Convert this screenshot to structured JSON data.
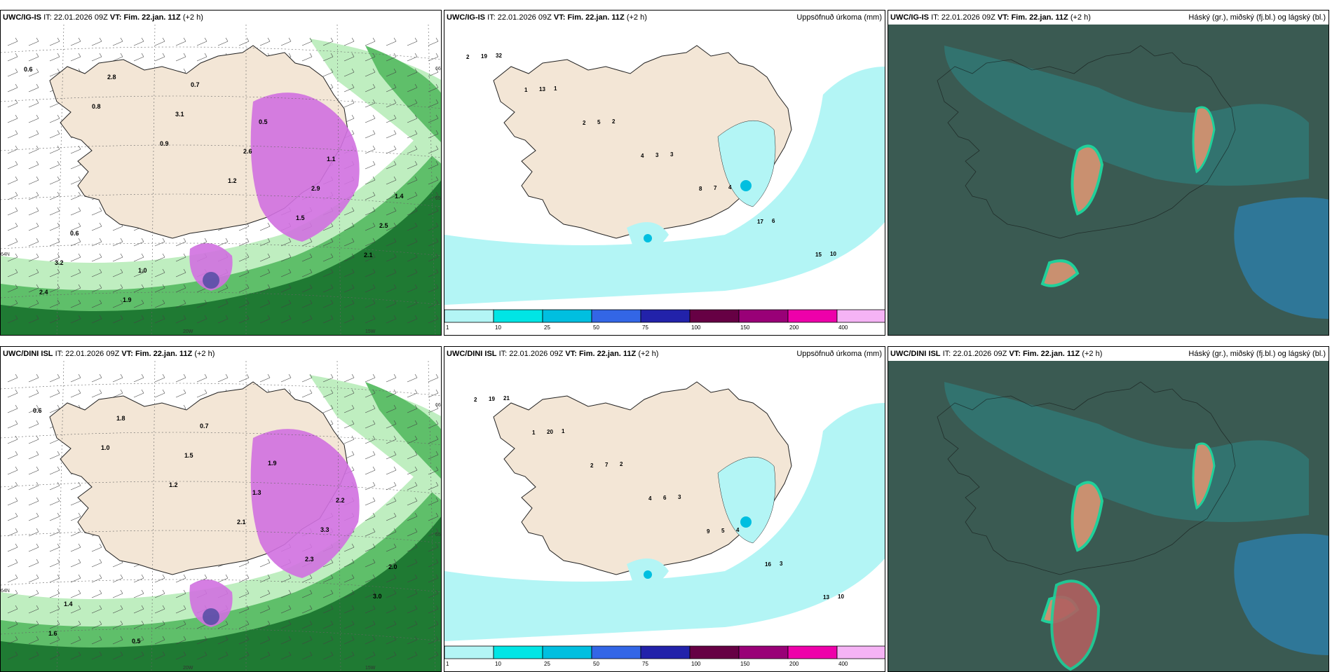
{
  "panels": [
    {
      "id": "p1",
      "model": "UWC/IG-IS",
      "it_label": "IT:",
      "it_value": "22.01.2026 09Z",
      "vt_label": "VT:",
      "vt_value": "Fim. 22.jan. 11Z",
      "lead": "(+2 h)",
      "right_title": ""
    },
    {
      "id": "p2",
      "model": "UWC/IG-IS",
      "it_label": "IT:",
      "it_value": "22.01.2026 09Z",
      "vt_label": "VT:",
      "vt_value": "Fim. 22.jan. 11Z",
      "lead": "(+2 h)",
      "right_title": "Uppsöfnuð úrkoma (mm)"
    },
    {
      "id": "p3",
      "model": "UWC/IG-IS",
      "it_label": "IT:",
      "it_value": "22.01.2026 09Z",
      "vt_label": "VT:",
      "vt_value": "Fim. 22.jan. 11Z",
      "lead": "(+2 h)",
      "right_title": "Háský (gr.), miðský (fj.bl.) og lágský (bl.)"
    },
    {
      "id": "p4",
      "model": "UWC/DINI ISL",
      "it_label": "IT:",
      "it_value": "22.01.2026 09Z",
      "vt_label": "VT:",
      "vt_value": "Fim. 22.jan. 11Z",
      "lead": "(+2 h)",
      "right_title": ""
    },
    {
      "id": "p5",
      "model": "UWC/DINI ISL",
      "it_label": "IT:",
      "it_value": "22.01.2026 09Z",
      "vt_label": "VT:",
      "vt_value": "Fim. 22.jan. 11Z",
      "lead": "(+2 h)",
      "right_title": "Uppsöfnuð úrkoma (mm)"
    },
    {
      "id": "p6",
      "model": "UWC/DINI ISL",
      "it_label": "IT:",
      "it_value": "22.01.2026 09Z",
      "vt_label": "VT:",
      "vt_value": "Fim. 22.jan. 11Z",
      "lead": "(+2 h)",
      "right_title": "Háský (gr.), miðský (fj.bl.) og lágský (bl.)"
    }
  ],
  "grid_labels": {
    "lat66": "66N",
    "lat65": "65N",
    "lat64": "64N",
    "lon20": "20W",
    "lon15": "15W"
  },
  "precip_legend": {
    "labels": [
      "1",
      "10",
      "25",
      "50",
      "75",
      "100",
      "150",
      "200",
      "400"
    ],
    "colors": [
      "#b3f5f5",
      "#00e5e5",
      "#00bfe0",
      "#3366e6",
      "#2222aa",
      "#660044",
      "#990077",
      "#ee00aa",
      "#f5b3f5"
    ]
  },
  "snow_values_top": [
    "0.6",
    "0.8",
    "0.9",
    "1.2",
    "1.5",
    "2.1",
    "2.4",
    "2.8",
    "3.1",
    "2.6",
    "2.9",
    "2.5",
    "3.2",
    "1.9",
    "0.7",
    "0.5",
    "1.1",
    "1.4",
    "0.6",
    "1.0"
  ],
  "snow_values_bottom": [
    "0.6",
    "1.0",
    "1.2",
    "2.1",
    "2.3",
    "3.0",
    "1.6",
    "1.8",
    "1.5",
    "1.3",
    "3.3",
    "2.0",
    "1.4",
    "0.5",
    "0.7",
    "1.9",
    "2.2"
  ],
  "precip_values_top": [
    "2",
    "1",
    "2",
    "4",
    "8",
    "17",
    "15",
    "19",
    "13",
    "5",
    "3",
    "7",
    "6",
    "10",
    "32",
    "1",
    "2",
    "3",
    "4"
  ],
  "precip_values_bottom": [
    "2",
    "1",
    "2",
    "4",
    "9",
    "16",
    "13",
    "19",
    "20",
    "7",
    "6",
    "5",
    "3",
    "10",
    "21",
    "1",
    "2",
    "3",
    "4"
  ],
  "colors": {
    "land": "#f3e6d6",
    "sea_green": "#bfeec0",
    "snow_pink": "#d070e0",
    "cloud_dark": "#3a5a52",
    "cloud_teal": "#2a8c8c",
    "cloud_green": "#20d09a",
    "precip_cyan": "#b3f5f5"
  }
}
